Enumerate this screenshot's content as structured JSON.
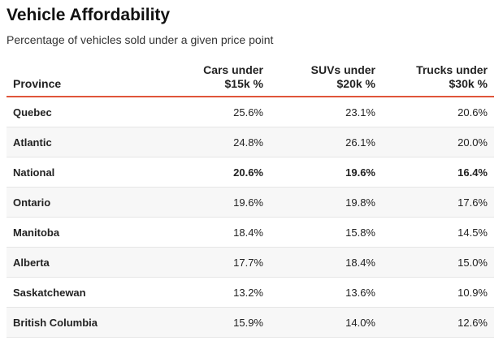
{
  "title": "Vehicle Affordability",
  "subtitle": "Percentage of vehicles sold under a given price point",
  "table": {
    "headers": {
      "province": "Province",
      "cars_line1": "Cars under",
      "cars_line2": "$15k %",
      "suvs_line1": "SUVs under",
      "suvs_line2": "$20k %",
      "trucks_line1": "Trucks under",
      "trucks_line2": "$30k %"
    },
    "rows": [
      {
        "province": "Quebec",
        "cars": "25.6%",
        "suvs": "23.1%",
        "trucks": "20.6%"
      },
      {
        "province": "Atlantic",
        "cars": "24.8%",
        "suvs": "26.1%",
        "trucks": "20.0%"
      },
      {
        "province": "National",
        "cars": "20.6%",
        "suvs": "19.6%",
        "trucks": "16.4%"
      },
      {
        "province": "Ontario",
        "cars": "19.6%",
        "suvs": "19.8%",
        "trucks": "17.6%"
      },
      {
        "province": "Manitoba",
        "cars": "18.4%",
        "suvs": "15.8%",
        "trucks": "14.5%"
      },
      {
        "province": "Alberta",
        "cars": "17.7%",
        "suvs": "18.4%",
        "trucks": "15.0%"
      },
      {
        "province": "Saskatchewan",
        "cars": "13.2%",
        "suvs": "13.6%",
        "trucks": "10.9%"
      },
      {
        "province": "British Columbia",
        "cars": "15.9%",
        "suvs": "14.0%",
        "trucks": "12.6%"
      }
    ]
  },
  "colors": {
    "header_rule": "#e0563b",
    "alt_row": "#f7f7f7"
  }
}
